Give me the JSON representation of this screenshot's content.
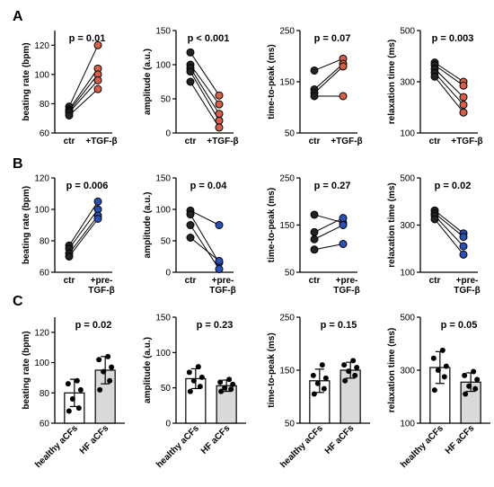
{
  "colors": {
    "ctr": "#222222",
    "tgf": "#d6604a",
    "pre": "#2a4fb5",
    "bar_healthy": "#ffffff",
    "bar_hf": "#d9d9d9"
  },
  "panels": [
    {
      "label": "A"
    },
    {
      "label": "B"
    },
    {
      "label": "C"
    }
  ],
  "chart_data": [
    {
      "type": "line",
      "panel": "A",
      "ylabel": "beating rate (bpm)",
      "ylim": [
        60,
        130
      ],
      "yticks": [
        60,
        80,
        100,
        120
      ],
      "categories": [
        "ctr",
        "+TGF-β"
      ],
      "p_text": "p = 0.01",
      "series": [
        {
          "values": [
            78,
            120
          ]
        },
        {
          "values": [
            76,
            104
          ]
        },
        {
          "values": [
            75,
            100
          ]
        },
        {
          "values": [
            74,
            96
          ]
        },
        {
          "values": [
            72,
            90
          ]
        }
      ]
    },
    {
      "type": "line",
      "panel": "A",
      "ylabel": "amplitude (a.u.)",
      "ylim": [
        0,
        150
      ],
      "yticks": [
        0,
        50,
        100,
        150
      ],
      "categories": [
        "ctr",
        "+TGF-β"
      ],
      "p_text": "p < 0.001",
      "series": [
        {
          "values": [
            118,
            55
          ]
        },
        {
          "values": [
            100,
            42
          ]
        },
        {
          "values": [
            95,
            28
          ]
        },
        {
          "values": [
            90,
            18
          ]
        },
        {
          "values": [
            75,
            8
          ]
        }
      ]
    },
    {
      "type": "line",
      "panel": "A",
      "ylabel": "time-to-peak (ms)",
      "ylim": [
        50,
        250
      ],
      "yticks": [
        50,
        150,
        250
      ],
      "categories": [
        "ctr",
        "+TGF-β"
      ],
      "p_text": "p = 0.07",
      "series": [
        {
          "values": [
            172,
            195
          ]
        },
        {
          "values": [
            135,
            185
          ]
        },
        {
          "values": [
            128,
            180
          ]
        },
        {
          "values": [
            122,
            122
          ]
        }
      ]
    },
    {
      "type": "line",
      "panel": "A",
      "ylabel": "relaxation time (ms)",
      "ylim": [
        100,
        500
      ],
      "yticks": [
        100,
        300,
        500
      ],
      "categories": [
        "ctr",
        "+TGF-β"
      ],
      "p_text": "p = 0.003",
      "series": [
        {
          "values": [
            375,
            300
          ]
        },
        {
          "values": [
            365,
            285
          ]
        },
        {
          "values": [
            350,
            240
          ]
        },
        {
          "values": [
            335,
            210
          ]
        },
        {
          "values": [
            320,
            180
          ]
        }
      ]
    },
    {
      "type": "line",
      "panel": "B",
      "ylabel": "beating rate (bpm)",
      "ylim": [
        60,
        120
      ],
      "yticks": [
        60,
        80,
        100,
        120
      ],
      "categories": [
        "ctr",
        "+pre-\nTGF-β"
      ],
      "p_text": "p = 0.006",
      "series": [
        {
          "values": [
            77,
            105
          ]
        },
        {
          "values": [
            75,
            100
          ]
        },
        {
          "values": [
            72,
            96
          ]
        },
        {
          "values": [
            70,
            94
          ]
        }
      ]
    },
    {
      "type": "line",
      "panel": "B",
      "ylabel": "amplitude (a.u.)",
      "ylim": [
        0,
        150
      ],
      "yticks": [
        0,
        50,
        100,
        150
      ],
      "categories": [
        "ctr",
        "+pre-\nTGF-β"
      ],
      "p_text": "p = 0.04",
      "series": [
        {
          "values": [
            98,
            75
          ]
        },
        {
          "values": [
            92,
            15
          ]
        },
        {
          "values": [
            75,
            5
          ]
        },
        {
          "values": [
            55,
            18
          ]
        }
      ]
    },
    {
      "type": "line",
      "panel": "B",
      "ylabel": "time-to-peak (ms)",
      "ylim": [
        50,
        250
      ],
      "yticks": [
        50,
        150,
        250
      ],
      "categories": [
        "ctr",
        "+pre-\nTGF-β"
      ],
      "p_text": "p = 0.27",
      "series": [
        {
          "values": [
            172,
            155
          ]
        },
        {
          "values": [
            135,
            165
          ]
        },
        {
          "values": [
            120,
            150
          ]
        },
        {
          "values": [
            98,
            110
          ]
        }
      ]
    },
    {
      "type": "line",
      "panel": "B",
      "ylabel": "relaxation time (ms)",
      "ylim": [
        100,
        500
      ],
      "yticks": [
        100,
        300,
        500
      ],
      "categories": [
        "ctr",
        "+pre-\nTGF-β"
      ],
      "p_text": "p = 0.02",
      "series": [
        {
          "values": [
            362,
            265
          ]
        },
        {
          "values": [
            350,
            250
          ]
        },
        {
          "values": [
            340,
            210
          ]
        },
        {
          "values": [
            325,
            175
          ]
        }
      ]
    },
    {
      "type": "bar",
      "panel": "C",
      "ylabel": "beating rate (bpm)",
      "ylim": [
        60,
        130
      ],
      "yticks": [
        60,
        80,
        100,
        120
      ],
      "categories": [
        "healthy aCFs",
        "HF aCFs"
      ],
      "p_text": "p = 0.02",
      "values": [
        80,
        95
      ],
      "errors": [
        9,
        9
      ],
      "points": [
        [
          68,
          70,
          76,
          82,
          86,
          88
        ],
        [
          82,
          88,
          94,
          97,
          102,
          104
        ]
      ]
    },
    {
      "type": "bar",
      "panel": "C",
      "ylabel": "amplitude (a.u.)",
      "ylim": [
        0,
        150
      ],
      "yticks": [
        0,
        50,
        100,
        150
      ],
      "categories": [
        "healthy aCFs",
        "HF aCFs"
      ],
      "p_text": "p = 0.23",
      "values": [
        63,
        53
      ],
      "errors": [
        14,
        8
      ],
      "points": [
        [
          45,
          52,
          60,
          65,
          72,
          80
        ],
        [
          45,
          48,
          50,
          55,
          58,
          62
        ]
      ]
    },
    {
      "type": "bar",
      "panel": "C",
      "ylabel": "time-to-peak (ms)",
      "ylim": [
        50,
        250
      ],
      "yticks": [
        50,
        150,
        250
      ],
      "categories": [
        "healthy aCFs",
        "HF aCFs"
      ],
      "p_text": "p = 0.15",
      "values": [
        130,
        150
      ],
      "errors": [
        22,
        15
      ],
      "points": [
        [
          105,
          115,
          125,
          135,
          140,
          160
        ],
        [
          130,
          140,
          148,
          155,
          160,
          168
        ]
      ]
    },
    {
      "type": "bar",
      "panel": "C",
      "ylabel": "relaxation time (ms)",
      "ylim": [
        100,
        500
      ],
      "yticks": [
        100,
        300,
        500
      ],
      "categories": [
        "healthy aCFs",
        "HF aCFs"
      ],
      "p_text": "p = 0.05",
      "values": [
        310,
        255
      ],
      "errors": [
        60,
        35
      ],
      "points": [
        [
          225,
          275,
          300,
          315,
          345,
          375
        ],
        [
          210,
          230,
          240,
          265,
          280,
          295
        ]
      ]
    }
  ]
}
